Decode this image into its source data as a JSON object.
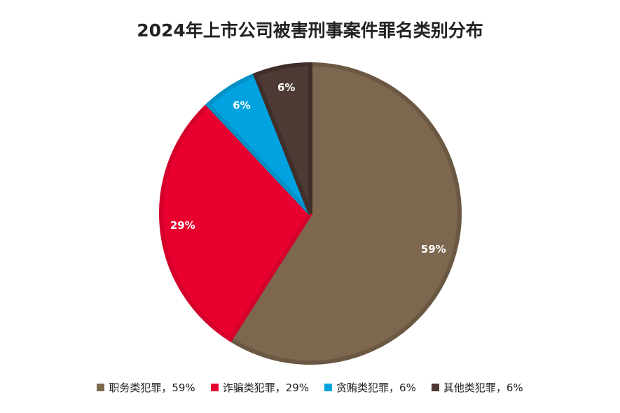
{
  "chart_data": {
    "type": "pie",
    "title": "2024年上市公司被害刑事案件罪名类别分布",
    "slices": [
      {
        "label": "职务类犯罪",
        "value": 59,
        "value_label": "59%",
        "legend_text": "职务类犯罪，59%",
        "color": "#7D674E",
        "border": "#6B5843"
      },
      {
        "label": "诈骗类犯罪",
        "value": 29,
        "value_label": "29%",
        "legend_text": "诈骗类犯罪，29%",
        "color": "#E8002F",
        "border": "#D4002B"
      },
      {
        "label": "贪贿类犯罪",
        "value": 6,
        "value_label": "6%",
        "legend_text": "贪贿类犯罪，6%",
        "color": "#00A3E0",
        "border": "#0290C6"
      },
      {
        "label": "其他类犯罪",
        "value": 6,
        "value_label": "6%",
        "legend_text": "其他类犯罪，6%",
        "color": "#4E3A35",
        "border": "#3F2E2A"
      }
    ],
    "start_angle_deg": 0,
    "direction": "clockwise",
    "legend_position": "bottom"
  }
}
